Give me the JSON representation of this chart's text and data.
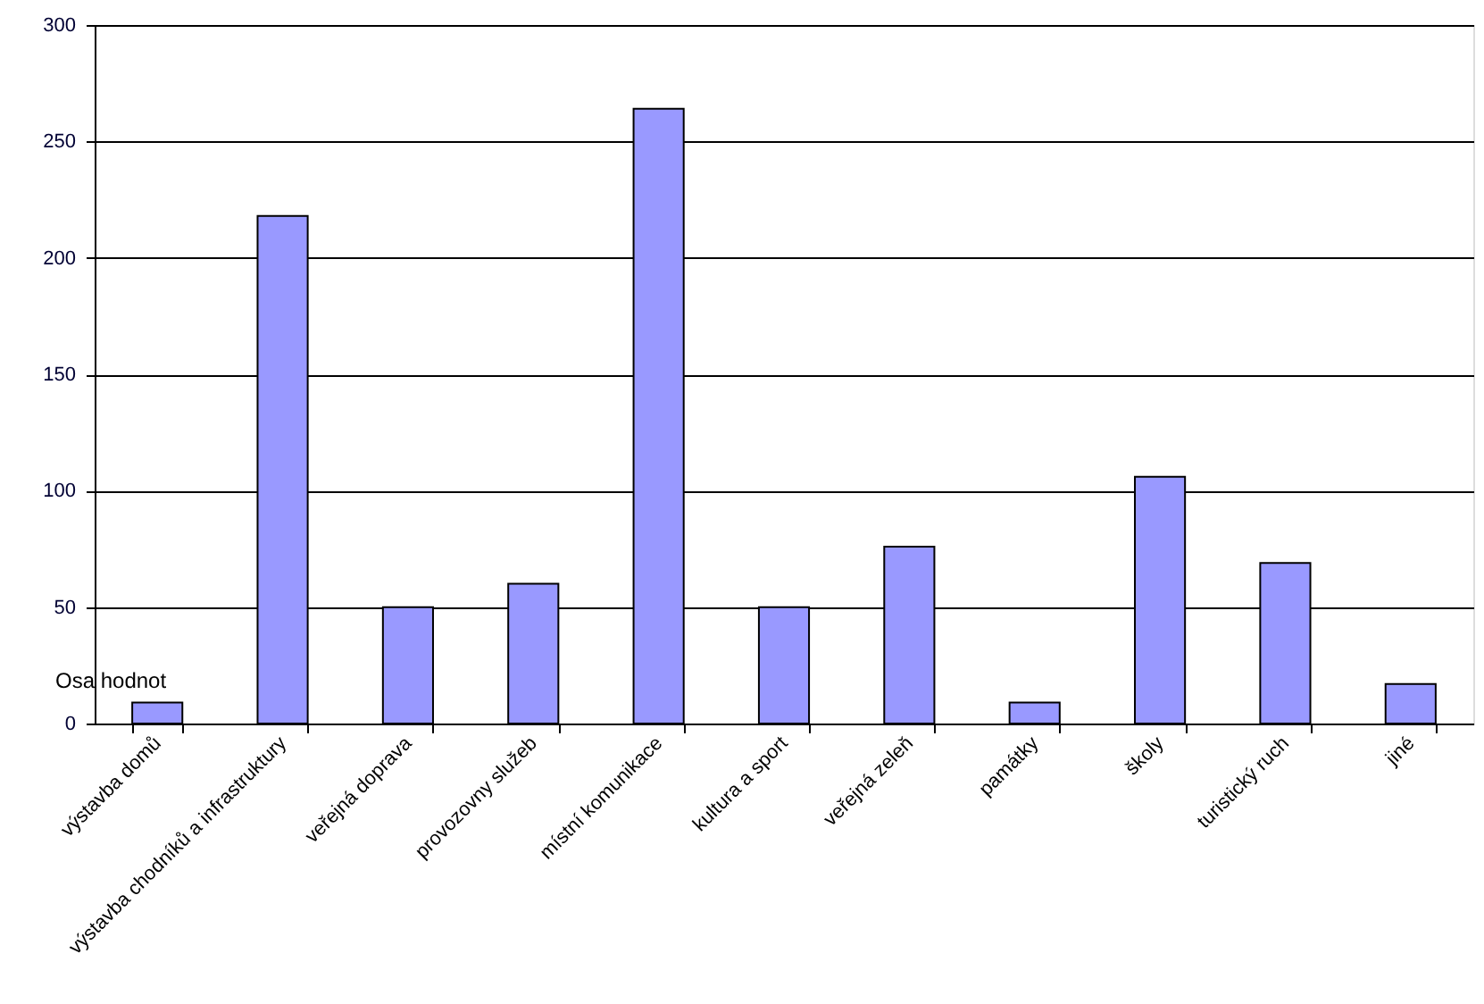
{
  "chart_data": {
    "type": "bar",
    "categories": [
      "výstavba domů",
      "výstavba chodníků a infrastruktury",
      "veřejná doprava",
      "provozovny služeb",
      "místní komunikace",
      "kultura a sport",
      "veřejná zeleň",
      "památky",
      "školy",
      "turistický ruch",
      "jiné"
    ],
    "values": [
      9,
      218,
      50,
      60,
      264,
      50,
      76,
      9,
      106,
      69,
      17
    ],
    "color": "#9999ff",
    "ylim": [
      0,
      300
    ],
    "yticks": [
      0,
      50,
      100,
      150,
      200,
      250,
      300
    ],
    "grid": "y",
    "annotations": [
      "Osa hodnot"
    ]
  }
}
